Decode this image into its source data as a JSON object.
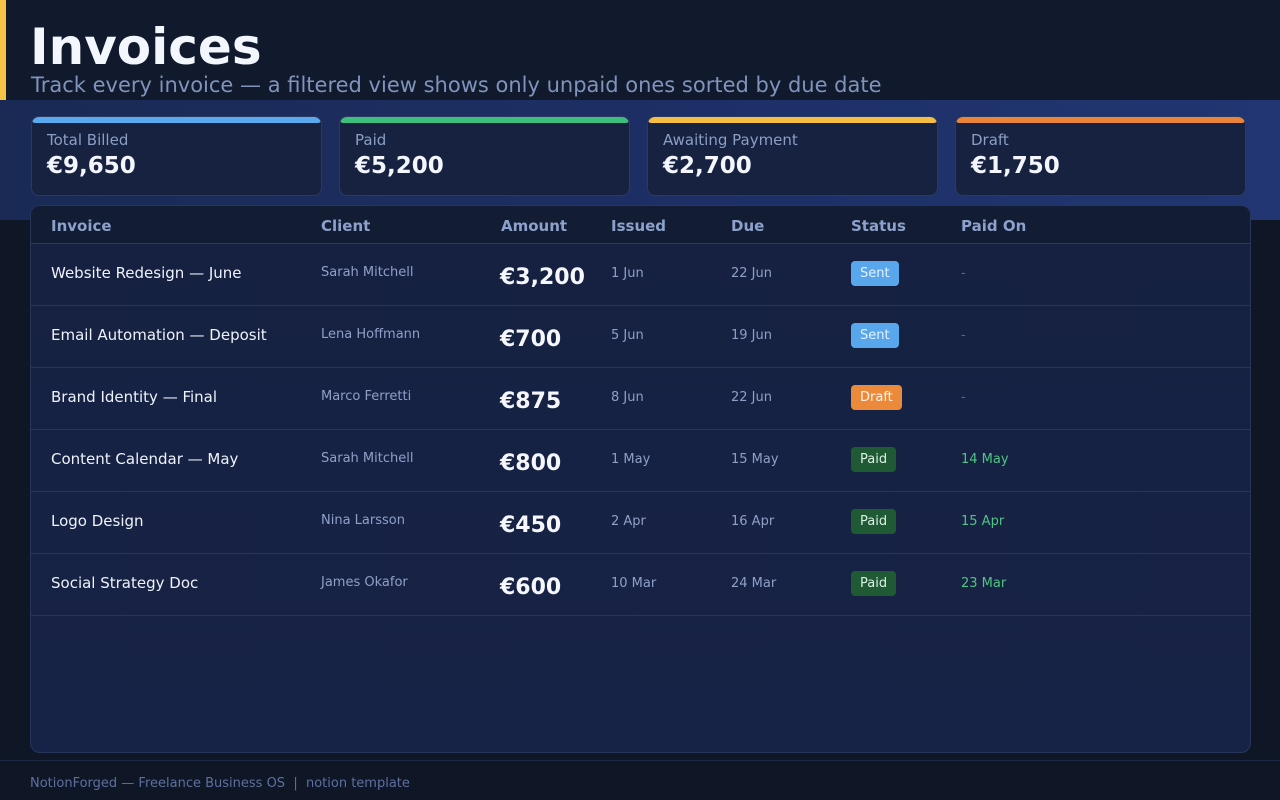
{
  "header": {
    "title": "Invoices",
    "subtitle": "Track every invoice — a filtered view shows only unpaid ones sorted by due date"
  },
  "stats": [
    {
      "label": "Total Billed",
      "value": "€9,650",
      "color": "#5aa9ee"
    },
    {
      "label": "Paid",
      "value": "€5,200",
      "color": "#3cbf7c"
    },
    {
      "label": "Awaiting Payment",
      "value": "€2,700",
      "color": "#f5bd41"
    },
    {
      "label": "Draft",
      "value": "€1,750",
      "color": "#eb8438"
    }
  ],
  "table": {
    "columns": [
      "Invoice",
      "Client",
      "Amount",
      "Issued",
      "Due",
      "Status",
      "Paid On"
    ],
    "rows": [
      {
        "invoice": "Website Redesign — June",
        "client": "Sarah Mitchell",
        "amount": "€3,200",
        "issued": "1 Jun",
        "due": "22 Jun",
        "status": "Sent",
        "paid_on": "-"
      },
      {
        "invoice": "Email Automation — Deposit",
        "client": "Lena Hoffmann",
        "amount": "€700",
        "issued": "5 Jun",
        "due": "19 Jun",
        "status": "Sent",
        "paid_on": "-"
      },
      {
        "invoice": "Brand Identity — Final",
        "client": "Marco Ferretti",
        "amount": "€875",
        "issued": "8 Jun",
        "due": "22 Jun",
        "status": "Draft",
        "paid_on": "-"
      },
      {
        "invoice": "Content Calendar — May",
        "client": "Sarah Mitchell",
        "amount": "€800",
        "issued": "1 May",
        "due": "15 May",
        "status": "Paid",
        "paid_on": "14 May"
      },
      {
        "invoice": "Logo Design",
        "client": "Nina Larsson",
        "amount": "€450",
        "issued": "2 Apr",
        "due": "16 Apr",
        "status": "Paid",
        "paid_on": "15 Apr"
      },
      {
        "invoice": "Social Strategy Doc",
        "client": "James Okafor",
        "amount": "€600",
        "issued": "10 Mar",
        "due": "24 Mar",
        "status": "Paid",
        "paid_on": "23 Mar"
      }
    ]
  },
  "footer": {
    "text": "NotionForged — Freelance Business OS  |  notion template"
  }
}
